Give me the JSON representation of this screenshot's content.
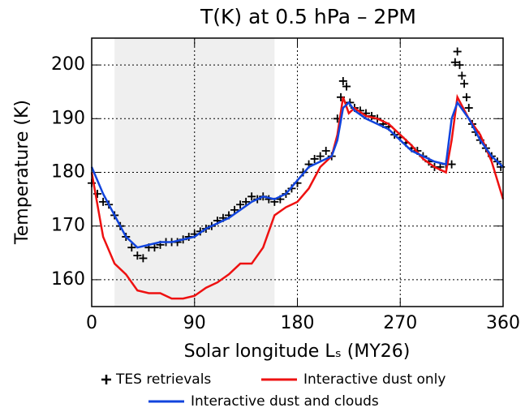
{
  "chart_data": {
    "type": "line",
    "title": "T(K) at 0.5 hPa – 2PM",
    "x_label": "Solar longitude Lₛ (MY26)",
    "y_label": "Temperature (K)",
    "xlim": [
      0,
      360
    ],
    "xticks": [
      0,
      90,
      180,
      270,
      360
    ],
    "ylim": [
      155,
      205
    ],
    "yticks": [
      160,
      170,
      180,
      190,
      200
    ],
    "grid": true,
    "shaded_region": [
      20,
      160
    ],
    "shade_color": "#efefef",
    "legend": "bottom",
    "series": [
      {
        "name": "TES retrievals",
        "color": "#000000",
        "marker": "+",
        "x": [
          0,
          5,
          10,
          15,
          20,
          25,
          30,
          35,
          40,
          45,
          50,
          55,
          60,
          65,
          70,
          75,
          80,
          85,
          90,
          95,
          100,
          105,
          110,
          115,
          120,
          125,
          130,
          135,
          140,
          145,
          150,
          155,
          160,
          165,
          170,
          175,
          180,
          185,
          190,
          195,
          200,
          205,
          210,
          215,
          218,
          220,
          223,
          226,
          230,
          235,
          240,
          245,
          250,
          255,
          260,
          265,
          270,
          275,
          280,
          285,
          290,
          295,
          300,
          305,
          310,
          315,
          318,
          320,
          322,
          324,
          326,
          328,
          330,
          333,
          336,
          340,
          345,
          350,
          355,
          358
        ],
        "values": [
          178,
          176,
          174.5,
          174,
          172,
          170,
          168,
          166,
          164.5,
          164,
          166,
          166,
          166.5,
          167,
          167,
          167,
          167.5,
          168,
          168.5,
          169,
          169.5,
          170,
          171,
          171.5,
          172,
          173,
          174,
          174.5,
          175.5,
          175,
          175.5,
          175,
          174.5,
          175,
          176,
          177,
          178,
          180,
          181.5,
          182.5,
          183,
          184,
          183,
          190,
          194,
          197,
          196,
          193,
          192,
          191.5,
          191,
          190.5,
          190,
          189,
          188.5,
          187,
          186.5,
          185.5,
          184.5,
          184,
          183,
          182,
          181,
          181,
          181.5,
          181.5,
          200.5,
          202.5,
          200,
          198,
          196.5,
          194,
          192,
          189,
          187.5,
          186,
          184.5,
          183,
          182,
          181
        ]
      },
      {
        "name": "Interactive dust only",
        "color": "#ee1111",
        "marker": "line",
        "x": [
          0,
          10,
          20,
          30,
          40,
          50,
          60,
          70,
          80,
          90,
          100,
          110,
          120,
          130,
          140,
          150,
          160,
          170,
          180,
          190,
          200,
          210,
          215,
          220,
          225,
          230,
          240,
          250,
          260,
          270,
          280,
          290,
          300,
          310,
          315,
          320,
          330,
          340,
          350,
          360
        ],
        "values": [
          180,
          168,
          163,
          161,
          158,
          157.5,
          157.5,
          156.5,
          156.5,
          157,
          158.5,
          159.5,
          161,
          163,
          163,
          166,
          172,
          173.5,
          174.5,
          177,
          181,
          183,
          187,
          194,
          191,
          192,
          190.5,
          190,
          189,
          187,
          185,
          182.5,
          181,
          180,
          186,
          194,
          190,
          187,
          182,
          175
        ]
      },
      {
        "name": "Interactive dust and clouds",
        "color": "#1144dd",
        "marker": "line",
        "x": [
          0,
          10,
          20,
          30,
          40,
          50,
          60,
          70,
          80,
          90,
          100,
          110,
          120,
          130,
          140,
          150,
          160,
          170,
          180,
          190,
          200,
          210,
          215,
          220,
          225,
          230,
          240,
          250,
          260,
          270,
          280,
          290,
          300,
          310,
          315,
          320,
          330,
          340,
          350,
          360
        ],
        "values": [
          181,
          176,
          172,
          168,
          166,
          166.5,
          167,
          167,
          167.5,
          168,
          169.5,
          170.5,
          171.5,
          173,
          174.5,
          175.5,
          175,
          176,
          178.5,
          181,
          182,
          183,
          186,
          192,
          193,
          191.5,
          190,
          189,
          188,
          186,
          184,
          183,
          182,
          181.5,
          190,
          193,
          190,
          186,
          183,
          181
        ]
      }
    ]
  }
}
